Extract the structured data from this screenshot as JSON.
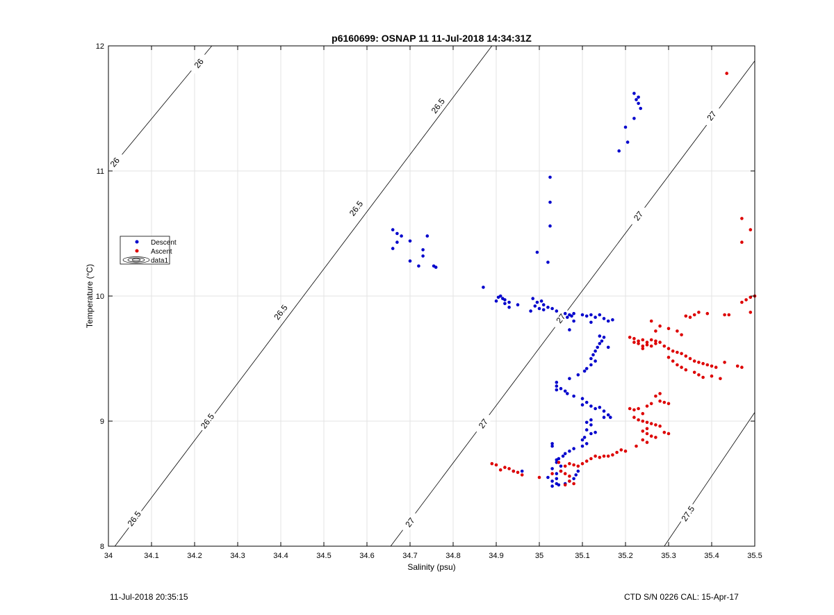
{
  "chart_data": {
    "type": "scatter",
    "title": "p6160699: OSNAP 11 11-Jul-2018 14:34:31Z",
    "xlabel": "Salinity (psu)",
    "ylabel": "Temperature (°C)",
    "xlim": [
      34,
      35.5
    ],
    "ylim": [
      8,
      12
    ],
    "xticks": [
      "34",
      "34.1",
      "34.2",
      "34.3",
      "34.4",
      "34.5",
      "34.6",
      "34.7",
      "34.8",
      "34.9",
      "35",
      "35.1",
      "35.2",
      "35.3",
      "35.4",
      "35.5"
    ],
    "yticks": [
      "8",
      "9",
      "10",
      "11",
      "12"
    ],
    "grid": true,
    "legend_position": "left",
    "legend": [
      {
        "label": "Descent",
        "marker": "dot",
        "color": "#0000cc"
      },
      {
        "label": "Ascent",
        "marker": "dot",
        "color": "#dd0000"
      },
      {
        "label": "data1",
        "marker": "contour",
        "color": "#000000"
      }
    ],
    "contours": [
      {
        "value": 26,
        "label": "26",
        "points": [
          [
            34.0,
            11.0
          ],
          [
            34.24,
            12.0
          ]
        ],
        "label_positions": [
          [
            34.015,
            11.07
          ],
          [
            34.21,
            11.86
          ]
        ]
      },
      {
        "value": 26.5,
        "label": "26.5",
        "points": [
          [
            34.015,
            8.0
          ],
          [
            34.89,
            12.0
          ]
        ],
        "label_positions": [
          [
            34.06,
            8.22
          ],
          [
            34.23,
            9.0
          ],
          [
            34.4,
            9.87
          ],
          [
            34.575,
            10.7
          ],
          [
            34.765,
            11.52
          ]
        ]
      },
      {
        "value": 27,
        "label": "27",
        "points": [
          [
            34.655,
            8.0
          ],
          [
            35.5,
            11.88
          ]
        ],
        "label_positions": [
          [
            34.7,
            8.19
          ],
          [
            34.87,
            8.98
          ],
          [
            35.05,
            9.82
          ],
          [
            35.23,
            10.64
          ],
          [
            35.4,
            11.44
          ]
        ]
      },
      {
        "value": 27.5,
        "label": "27.5",
        "points": [
          [
            35.29,
            8.0
          ],
          [
            35.5,
            9.07
          ]
        ],
        "label_positions": [
          [
            35.345,
            8.26
          ]
        ]
      }
    ],
    "series": [
      {
        "name": "Descent",
        "color": "#0000cc",
        "points": [
          [
            35.22,
            11.62
          ],
          [
            35.23,
            11.59
          ],
          [
            35.225,
            11.57
          ],
          [
            35.23,
            11.54
          ],
          [
            35.235,
            11.5
          ],
          [
            35.22,
            11.42
          ],
          [
            35.2,
            11.35
          ],
          [
            35.205,
            11.23
          ],
          [
            35.185,
            11.16
          ],
          [
            35.025,
            10.95
          ],
          [
            35.025,
            10.75
          ],
          [
            35.025,
            10.56
          ],
          [
            34.995,
            10.35
          ],
          [
            35.02,
            10.27
          ],
          [
            34.66,
            10.53
          ],
          [
            34.67,
            10.5
          ],
          [
            34.68,
            10.48
          ],
          [
            34.74,
            10.48
          ],
          [
            34.67,
            10.43
          ],
          [
            34.7,
            10.44
          ],
          [
            34.66,
            10.38
          ],
          [
            34.73,
            10.37
          ],
          [
            34.73,
            10.32
          ],
          [
            34.7,
            10.28
          ],
          [
            34.72,
            10.24
          ],
          [
            34.755,
            10.24
          ],
          [
            34.76,
            10.23
          ],
          [
            34.87,
            10.07
          ],
          [
            34.91,
            10.0
          ],
          [
            34.905,
            9.99
          ],
          [
            34.915,
            9.98
          ],
          [
            34.9,
            9.96
          ],
          [
            34.92,
            9.97
          ],
          [
            34.93,
            9.95
          ],
          [
            34.95,
            9.93
          ],
          [
            34.92,
            9.94
          ],
          [
            34.93,
            9.91
          ],
          [
            34.985,
            9.98
          ],
          [
            34.995,
            9.95
          ],
          [
            35.005,
            9.96
          ],
          [
            34.99,
            9.92
          ],
          [
            35.0,
            9.9
          ],
          [
            35.01,
            9.93
          ],
          [
            35.02,
            9.91
          ],
          [
            35.03,
            9.9
          ],
          [
            35.01,
            9.89
          ],
          [
            34.98,
            9.88
          ],
          [
            35.04,
            9.88
          ],
          [
            35.06,
            9.86
          ],
          [
            35.07,
            9.85
          ],
          [
            35.08,
            9.86
          ],
          [
            35.075,
            9.84
          ],
          [
            35.065,
            9.83
          ],
          [
            35.1,
            9.85
          ],
          [
            35.11,
            9.84
          ],
          [
            35.12,
            9.85
          ],
          [
            35.13,
            9.83
          ],
          [
            35.14,
            9.85
          ],
          [
            35.15,
            9.82
          ],
          [
            35.16,
            9.8
          ],
          [
            35.17,
            9.81
          ],
          [
            35.12,
            9.79
          ],
          [
            35.08,
            9.8
          ],
          [
            35.07,
            9.73
          ],
          [
            35.14,
            9.68
          ],
          [
            35.15,
            9.67
          ],
          [
            35.145,
            9.64
          ],
          [
            35.14,
            9.62
          ],
          [
            35.16,
            9.59
          ],
          [
            35.135,
            9.59
          ],
          [
            35.13,
            9.56
          ],
          [
            35.125,
            9.53
          ],
          [
            35.12,
            9.5
          ],
          [
            35.13,
            9.48
          ],
          [
            35.12,
            9.45
          ],
          [
            35.11,
            9.42
          ],
          [
            35.105,
            9.4
          ],
          [
            35.09,
            9.37
          ],
          [
            35.07,
            9.34
          ],
          [
            35.04,
            9.31
          ],
          [
            35.04,
            9.28
          ],
          [
            35.05,
            9.26
          ],
          [
            35.04,
            9.25
          ],
          [
            35.06,
            9.24
          ],
          [
            35.065,
            9.22
          ],
          [
            35.08,
            9.2
          ],
          [
            35.1,
            9.18
          ],
          [
            35.11,
            9.15
          ],
          [
            35.1,
            9.13
          ],
          [
            35.12,
            9.12
          ],
          [
            35.13,
            9.1
          ],
          [
            35.14,
            9.11
          ],
          [
            35.15,
            9.08
          ],
          [
            35.16,
            9.05
          ],
          [
            35.165,
            9.03
          ],
          [
            35.15,
            9.03
          ],
          [
            35.12,
            9.01
          ],
          [
            35.11,
            8.99
          ],
          [
            35.12,
            8.97
          ],
          [
            35.11,
            8.93
          ],
          [
            35.13,
            8.91
          ],
          [
            35.12,
            8.9
          ],
          [
            35.105,
            8.87
          ],
          [
            35.1,
            8.85
          ],
          [
            35.11,
            8.82
          ],
          [
            35.1,
            8.8
          ],
          [
            35.08,
            8.78
          ],
          [
            35.07,
            8.76
          ],
          [
            35.06,
            8.74
          ],
          [
            35.055,
            8.72
          ],
          [
            35.045,
            8.7
          ],
          [
            35.04,
            8.69
          ],
          [
            35.03,
            8.8
          ],
          [
            35.03,
            8.82
          ],
          [
            35.04,
            8.67
          ],
          [
            35.05,
            8.64
          ],
          [
            35.03,
            8.62
          ],
          [
            35.05,
            8.6
          ],
          [
            35.04,
            8.58
          ],
          [
            35.02,
            8.55
          ],
          [
            35.04,
            8.54
          ],
          [
            35.03,
            8.52
          ],
          [
            35.04,
            8.5
          ],
          [
            35.045,
            8.49
          ],
          [
            35.03,
            8.48
          ],
          [
            35.06,
            8.5
          ],
          [
            35.07,
            8.52
          ],
          [
            35.08,
            8.54
          ],
          [
            35.085,
            8.57
          ],
          [
            35.09,
            8.6
          ],
          [
            34.94,
            8.6
          ],
          [
            34.96,
            8.6
          ]
        ]
      },
      {
        "name": "Ascent",
        "color": "#dd0000",
        "points": [
          [
            35.435,
            11.78
          ],
          [
            35.47,
            10.62
          ],
          [
            35.49,
            10.53
          ],
          [
            35.47,
            10.43
          ],
          [
            35.5,
            10.0
          ],
          [
            35.49,
            9.99
          ],
          [
            35.48,
            9.97
          ],
          [
            35.47,
            9.95
          ],
          [
            35.43,
            9.85
          ],
          [
            35.44,
            9.85
          ],
          [
            35.39,
            9.86
          ],
          [
            35.37,
            9.87
          ],
          [
            35.36,
            9.85
          ],
          [
            35.35,
            9.83
          ],
          [
            35.34,
            9.84
          ],
          [
            35.49,
            9.87
          ],
          [
            35.21,
            9.67
          ],
          [
            35.22,
            9.66
          ],
          [
            35.23,
            9.64
          ],
          [
            35.24,
            9.65
          ],
          [
            35.25,
            9.63
          ],
          [
            35.26,
            9.65
          ],
          [
            35.27,
            9.64
          ],
          [
            35.28,
            9.63
          ],
          [
            35.25,
            9.61
          ],
          [
            35.24,
            9.6
          ],
          [
            35.23,
            9.62
          ],
          [
            35.22,
            9.63
          ],
          [
            35.26,
            9.6
          ],
          [
            35.27,
            9.62
          ],
          [
            35.29,
            9.6
          ],
          [
            35.3,
            9.58
          ],
          [
            35.31,
            9.56
          ],
          [
            35.32,
            9.55
          ],
          [
            35.33,
            9.54
          ],
          [
            35.34,
            9.52
          ],
          [
            35.35,
            9.5
          ],
          [
            35.36,
            9.48
          ],
          [
            35.37,
            9.47
          ],
          [
            35.38,
            9.46
          ],
          [
            35.39,
            9.45
          ],
          [
            35.4,
            9.44
          ],
          [
            35.41,
            9.43
          ],
          [
            35.3,
            9.51
          ],
          [
            35.31,
            9.48
          ],
          [
            35.32,
            9.45
          ],
          [
            35.33,
            9.43
          ],
          [
            35.34,
            9.41
          ],
          [
            35.36,
            9.39
          ],
          [
            35.37,
            9.37
          ],
          [
            35.38,
            9.35
          ],
          [
            35.4,
            9.36
          ],
          [
            35.42,
            9.34
          ],
          [
            35.43,
            9.47
          ],
          [
            35.46,
            9.44
          ],
          [
            35.47,
            9.43
          ],
          [
            35.24,
            9.58
          ],
          [
            35.27,
            9.72
          ],
          [
            35.26,
            9.8
          ],
          [
            35.28,
            9.76
          ],
          [
            35.3,
            9.74
          ],
          [
            35.32,
            9.72
          ],
          [
            35.33,
            9.69
          ],
          [
            35.21,
            9.1
          ],
          [
            35.22,
            9.09
          ],
          [
            35.23,
            9.1
          ],
          [
            35.25,
            9.12
          ],
          [
            35.26,
            9.14
          ],
          [
            35.28,
            9.16
          ],
          [
            35.29,
            9.15
          ],
          [
            35.3,
            9.14
          ],
          [
            35.24,
            9.06
          ],
          [
            35.22,
            9.03
          ],
          [
            35.23,
            9.01
          ],
          [
            35.24,
            9.0
          ],
          [
            35.25,
            8.99
          ],
          [
            35.26,
            8.98
          ],
          [
            35.27,
            8.97
          ],
          [
            35.28,
            8.96
          ],
          [
            35.25,
            8.94
          ],
          [
            35.24,
            8.92
          ],
          [
            35.25,
            8.9
          ],
          [
            35.26,
            8.88
          ],
          [
            35.27,
            8.87
          ],
          [
            35.29,
            8.91
          ],
          [
            35.3,
            8.9
          ],
          [
            35.24,
            8.85
          ],
          [
            35.25,
            8.83
          ],
          [
            35.27,
            9.2
          ],
          [
            35.28,
            9.22
          ],
          [
            35.2,
            8.76
          ],
          [
            35.19,
            8.77
          ],
          [
            35.18,
            8.75
          ],
          [
            35.17,
            8.73
          ],
          [
            35.16,
            8.72
          ],
          [
            35.15,
            8.72
          ],
          [
            35.14,
            8.71
          ],
          [
            35.13,
            8.72
          ],
          [
            35.12,
            8.7
          ],
          [
            35.11,
            8.68
          ],
          [
            35.1,
            8.66
          ],
          [
            35.09,
            8.64
          ],
          [
            35.08,
            8.65
          ],
          [
            35.07,
            8.66
          ],
          [
            35.06,
            8.64
          ],
          [
            35.05,
            8.6
          ],
          [
            35.06,
            8.58
          ],
          [
            35.07,
            8.56
          ],
          [
            35.07,
            8.52
          ],
          [
            35.08,
            8.5
          ],
          [
            35.06,
            8.49
          ],
          [
            35.045,
            8.67
          ],
          [
            35.03,
            8.58
          ],
          [
            35.0,
            8.55
          ],
          [
            34.89,
            8.66
          ],
          [
            34.9,
            8.65
          ],
          [
            34.92,
            8.63
          ],
          [
            34.93,
            8.62
          ],
          [
            34.91,
            8.61
          ],
          [
            34.94,
            8.6
          ],
          [
            34.95,
            8.59
          ],
          [
            34.96,
            8.57
          ],
          [
            35.225,
            8.8
          ]
        ]
      }
    ]
  },
  "footer": {
    "timestamp": "11-Jul-2018 20:35:15",
    "instrument": "CTD S/N 0226  CAL: 15-Apr-17"
  }
}
